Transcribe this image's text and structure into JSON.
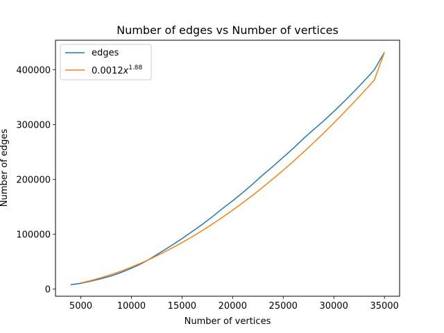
{
  "chart_data": {
    "type": "line",
    "title": "Number of edges vs Number of vertices",
    "xlabel": "Number of vertices",
    "ylabel": "Number of edges",
    "xlim": [
      2500,
      36500
    ],
    "ylim": [
      -13000,
      454000
    ],
    "xticks": [
      5000,
      10000,
      15000,
      20000,
      25000,
      30000,
      35000
    ],
    "yticks": [
      0,
      100000,
      200000,
      300000,
      400000
    ],
    "grid": false,
    "legend_position": "top-left",
    "series": [
      {
        "name": "edges",
        "color": "#1f77b4",
        "x": [
          4000,
          5000,
          6000,
          7000,
          8000,
          9000,
          10000,
          11000,
          12000,
          13000,
          14000,
          15000,
          16000,
          17000,
          18000,
          19000,
          20000,
          21000,
          22000,
          23000,
          24000,
          25000,
          26000,
          27000,
          28000,
          29000,
          30000,
          31000,
          32000,
          33000,
          34000,
          35000
        ],
        "y": [
          8000,
          10500,
          14500,
          19000,
          24000,
          30500,
          38000,
          46500,
          57000,
          68500,
          80000,
          92000,
          105000,
          118000,
          132000,
          147000,
          161000,
          176000,
          192000,
          208500,
          224000,
          240500,
          257000,
          274500,
          291000,
          307000,
          324000,
          342000,
          360500,
          380000,
          400000,
          432000
        ]
      },
      {
        "name": "0.0012x^{1.88}",
        "color": "#ff7f0e",
        "x": [
          5000,
          6000,
          7000,
          8000,
          9000,
          10000,
          11000,
          12000,
          13000,
          14000,
          15000,
          16000,
          17000,
          18000,
          19000,
          20000,
          21000,
          22000,
          23000,
          24000,
          25000,
          26000,
          27000,
          28000,
          29000,
          30000,
          31000,
          32000,
          33000,
          34000,
          35000
        ],
        "y": [
          11200,
          15600,
          20800,
          26600,
          33000,
          40200,
          47900,
          56200,
          65200,
          74700,
          84800,
          95500,
          106800,
          118600,
          131000,
          144000,
          157500,
          171500,
          186100,
          201300,
          216900,
          233100,
          249800,
          267000,
          284800,
          303100,
          321900,
          341200,
          361000,
          381300,
          432000
        ]
      }
    ]
  }
}
